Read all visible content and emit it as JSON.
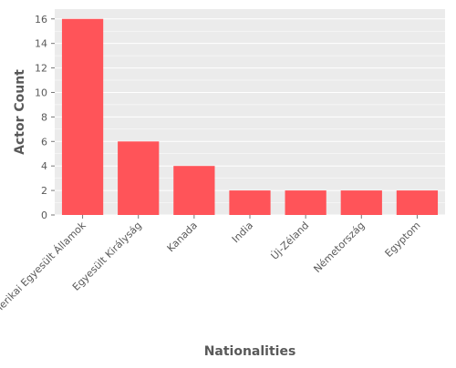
{
  "chart_data": {
    "type": "bar",
    "title": "",
    "xlabel": "Nationalities",
    "ylabel": "Actor Count",
    "categories": [
      "Amerikai Egyesült Államok",
      "Egyesült Királyság",
      "Kanada",
      "India",
      "Új-Zéland",
      "Németország",
      "Egyptom"
    ],
    "values": [
      16,
      6,
      4,
      2,
      2,
      2,
      2
    ],
    "ylim": [
      0,
      16.8
    ],
    "yticks": [
      0,
      2,
      4,
      6,
      8,
      10,
      12,
      14,
      16
    ],
    "grid": true,
    "legend": "none",
    "colors": {
      "bar": "#ff5459",
      "plot_background": "#ebebeb",
      "grid": "#ffffff",
      "text": "#595959"
    }
  }
}
